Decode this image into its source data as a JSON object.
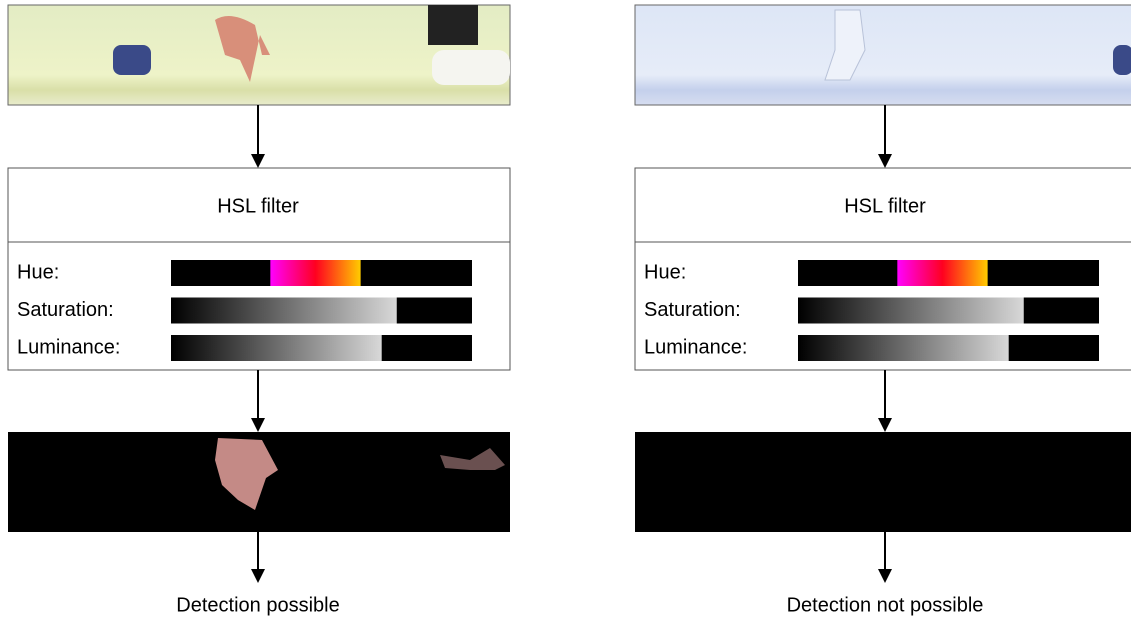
{
  "panels": [
    {
      "filter": {
        "title": "HSL filter",
        "rows": [
          "Hue:",
          "Saturation:",
          "Luminance:"
        ]
      },
      "result": "Detection possible"
    },
    {
      "filter": {
        "title": "HSL filter",
        "rows": [
          "Hue:",
          "Saturation:",
          "Luminance:"
        ]
      },
      "result": "Detection not possible"
    }
  ]
}
